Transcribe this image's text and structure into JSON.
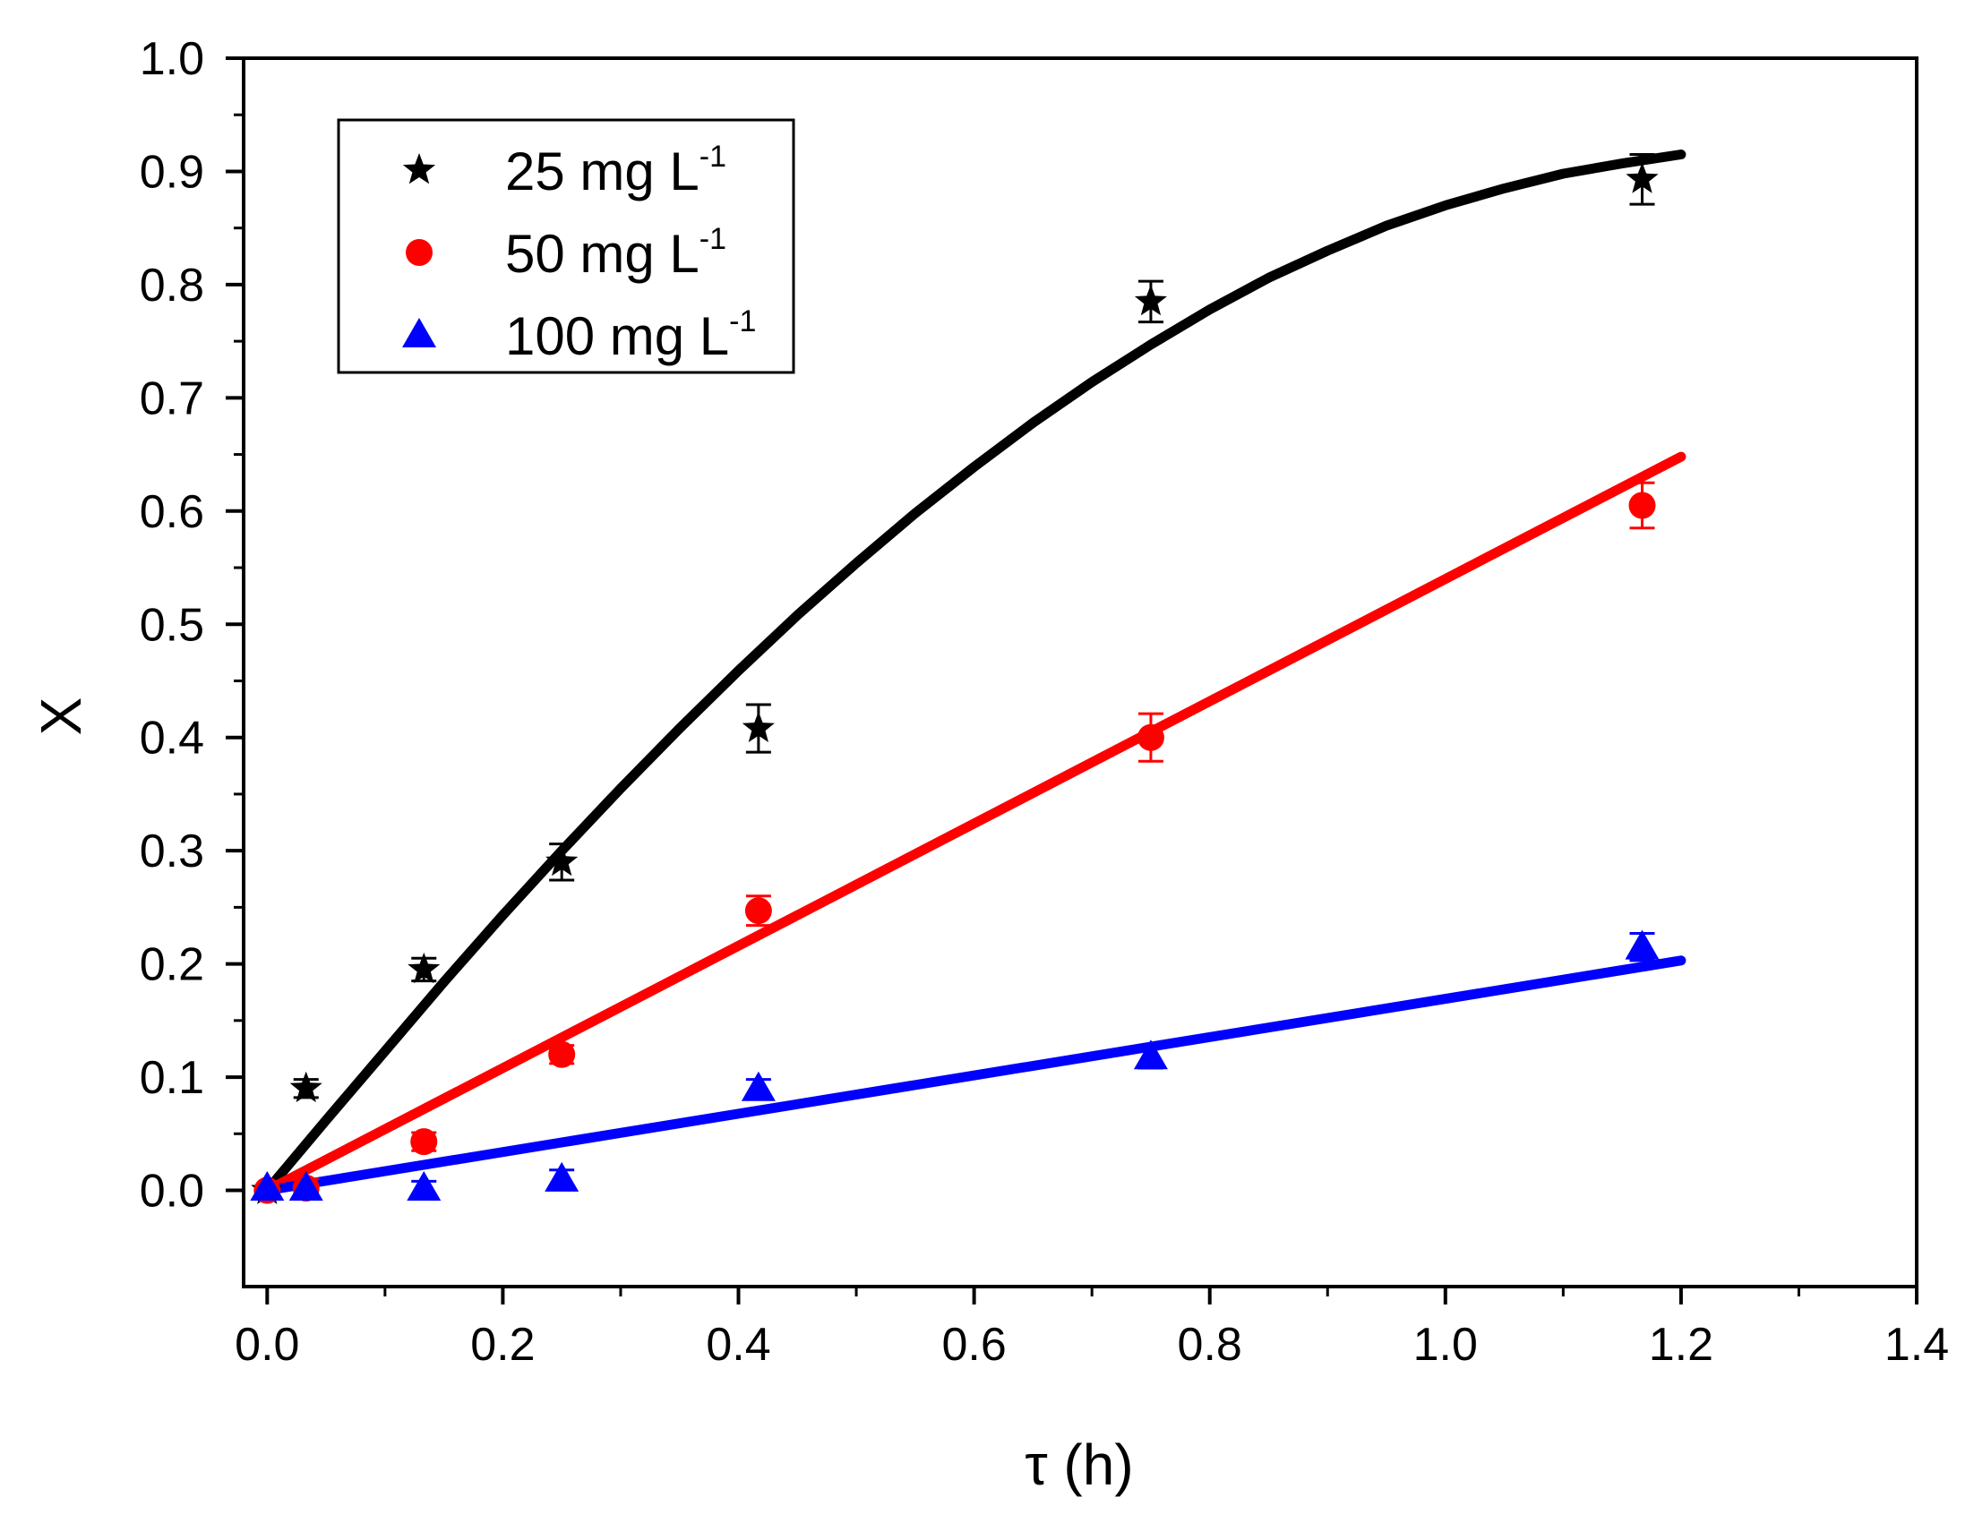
{
  "chart_data": {
    "type": "scatter",
    "xlabel": "τ (h)",
    "ylabel": "X",
    "xlim": [
      -0.02,
      1.4
    ],
    "ylim": [
      -0.085,
      1.0
    ],
    "x_ticks": [
      0.0,
      0.2,
      0.4,
      0.6,
      0.8,
      1.0,
      1.2,
      1.4
    ],
    "x_tick_labels": [
      "0.0",
      "0.2",
      "0.4",
      "0.6",
      "0.8",
      "1.0",
      "1.2",
      "1.4"
    ],
    "y_ticks": [
      0.0,
      0.1,
      0.2,
      0.3,
      0.4,
      0.5,
      0.6,
      0.7,
      0.8,
      0.9,
      1.0
    ],
    "y_tick_labels": [
      "0.0",
      "0.1",
      "0.2",
      "0.3",
      "0.4",
      "0.5",
      "0.6",
      "0.7",
      "0.8",
      "0.9",
      "1.0"
    ],
    "legend_position": "top-left",
    "series": [
      {
        "name": "25 mg L-1",
        "label_main": "25 mg L",
        "label_sup": "-1",
        "color": "#000000",
        "marker": "star",
        "points": [
          {
            "x": 0.0,
            "y": 0.0,
            "err": 0.0
          },
          {
            "x": 0.033,
            "y": 0.09,
            "err": 0.008
          },
          {
            "x": 0.133,
            "y": 0.195,
            "err": 0.01
          },
          {
            "x": 0.25,
            "y": 0.29,
            "err": 0.016
          },
          {
            "x": 0.417,
            "y": 0.408,
            "err": 0.021
          },
          {
            "x": 0.75,
            "y": 0.785,
            "err": 0.018
          },
          {
            "x": 1.167,
            "y": 0.893,
            "err": 0.022
          }
        ],
        "fit": {
          "x": [
            0.0,
            0.05,
            0.1,
            0.15,
            0.2,
            0.25,
            0.3,
            0.35,
            0.4,
            0.45,
            0.5,
            0.55,
            0.6,
            0.65,
            0.7,
            0.75,
            0.8,
            0.85,
            0.9,
            0.95,
            1.0,
            1.05,
            1.1,
            1.15,
            1.2
          ],
          "y": [
            0.0,
            0.062,
            0.123,
            0.184,
            0.243,
            0.3,
            0.355,
            0.408,
            0.459,
            0.508,
            0.554,
            0.598,
            0.639,
            0.678,
            0.714,
            0.747,
            0.778,
            0.806,
            0.83,
            0.852,
            0.87,
            0.885,
            0.898,
            0.907,
            0.915
          ]
        }
      },
      {
        "name": "50 mg L-1",
        "label_main": "50 mg L",
        "label_sup": "-1",
        "color": "#ff0000",
        "marker": "circle",
        "points": [
          {
            "x": 0.0,
            "y": 0.0,
            "err": 0.0
          },
          {
            "x": 0.033,
            "y": 0.002,
            "err": 0.008
          },
          {
            "x": 0.133,
            "y": 0.043,
            "err": 0.008
          },
          {
            "x": 0.25,
            "y": 0.12,
            "err": 0.008
          },
          {
            "x": 0.417,
            "y": 0.247,
            "err": 0.013
          },
          {
            "x": 0.75,
            "y": 0.4,
            "err": 0.021
          },
          {
            "x": 1.167,
            "y": 0.605,
            "err": 0.02
          }
        ],
        "fit": {
          "x": [
            0.0,
            1.2
          ],
          "y": [
            0.0,
            0.648
          ]
        }
      },
      {
        "name": "100 mg L-1",
        "label_main": "100 mg L",
        "label_sup": "-1",
        "color": "#0000ff",
        "marker": "triangle",
        "points": [
          {
            "x": 0.0,
            "y": 0.002,
            "err": 0.0
          },
          {
            "x": 0.033,
            "y": 0.002,
            "err": 0.005
          },
          {
            "x": 0.133,
            "y": 0.002,
            "err": 0.006
          },
          {
            "x": 0.25,
            "y": 0.01,
            "err": 0.008
          },
          {
            "x": 0.417,
            "y": 0.09,
            "err": 0.008
          },
          {
            "x": 0.75,
            "y": 0.118,
            "err": 0.01
          },
          {
            "x": 1.167,
            "y": 0.215,
            "err": 0.012
          }
        ],
        "fit": {
          "x": [
            0.0,
            1.2
          ],
          "y": [
            0.0,
            0.203
          ]
        }
      }
    ]
  }
}
